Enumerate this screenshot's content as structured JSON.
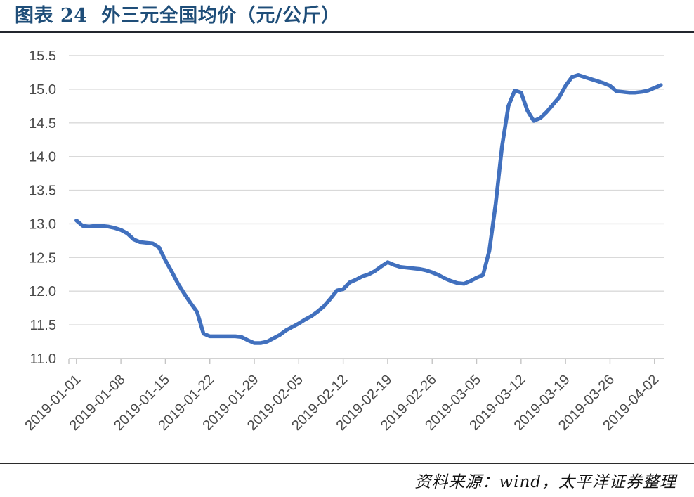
{
  "header": {
    "title": "图表 24  外三元全国均价（元/公斤）"
  },
  "footer": {
    "source": "资料来源：wind，太平洋证券整理"
  },
  "style": {
    "title_color": "#1F4E79",
    "title_rule_color": "#23262e",
    "line_color": "#4170BE",
    "grid_color": "#D9D9D9",
    "axis_color": "#C4C4C4",
    "axis_text_color": "#4a4a4a",
    "footer_rule_color": "#2b2b2b",
    "source_text_color": "#141414"
  },
  "chart_data": {
    "type": "line",
    "title": "外三元全国均价（元/公斤）",
    "xlabel": "",
    "ylabel": "",
    "ylim": [
      11.0,
      15.5
    ],
    "ytick_step": 0.5,
    "grid": "horizontal-only",
    "legend": "none",
    "x_tick_every": 7,
    "x_tick_labels": [
      "2019-01-01",
      "2019-01-08",
      "2019-01-15",
      "2019-01-22",
      "2019-01-29",
      "2019-02-05",
      "2019-02-12",
      "2019-02-19",
      "2019-02-26",
      "2019-03-05",
      "2019-03-12",
      "2019-03-19",
      "2019-03-26",
      "2019-04-02"
    ],
    "x": [
      "2019-01-01",
      "2019-01-02",
      "2019-01-03",
      "2019-01-04",
      "2019-01-05",
      "2019-01-06",
      "2019-01-07",
      "2019-01-08",
      "2019-01-09",
      "2019-01-10",
      "2019-01-11",
      "2019-01-12",
      "2019-01-13",
      "2019-01-14",
      "2019-01-15",
      "2019-01-16",
      "2019-01-17",
      "2019-01-18",
      "2019-01-19",
      "2019-01-20",
      "2019-01-21",
      "2019-01-22",
      "2019-01-23",
      "2019-01-24",
      "2019-01-25",
      "2019-01-26",
      "2019-01-27",
      "2019-01-28",
      "2019-01-29",
      "2019-01-30",
      "2019-01-31",
      "2019-02-01",
      "2019-02-02",
      "2019-02-03",
      "2019-02-04",
      "2019-02-05",
      "2019-02-06",
      "2019-02-07",
      "2019-02-08",
      "2019-02-09",
      "2019-02-10",
      "2019-02-11",
      "2019-02-12",
      "2019-02-13",
      "2019-02-14",
      "2019-02-15",
      "2019-02-16",
      "2019-02-17",
      "2019-02-18",
      "2019-02-19",
      "2019-02-20",
      "2019-02-21",
      "2019-02-22",
      "2019-02-23",
      "2019-02-24",
      "2019-02-25",
      "2019-02-26",
      "2019-02-27",
      "2019-02-28",
      "2019-03-01",
      "2019-03-02",
      "2019-03-03",
      "2019-03-04",
      "2019-03-05",
      "2019-03-06",
      "2019-03-07",
      "2019-03-08",
      "2019-03-09",
      "2019-03-10",
      "2019-03-11",
      "2019-03-12",
      "2019-03-13",
      "2019-03-14",
      "2019-03-15",
      "2019-03-16",
      "2019-03-17",
      "2019-03-18",
      "2019-03-19",
      "2019-03-20",
      "2019-03-21",
      "2019-03-22",
      "2019-03-23",
      "2019-03-24",
      "2019-03-25",
      "2019-03-26",
      "2019-03-27",
      "2019-03-28",
      "2019-03-29",
      "2019-03-30",
      "2019-03-31",
      "2019-04-01",
      "2019-04-02",
      "2019-04-03"
    ],
    "series": [
      {
        "name": "外三元全国均价(元/公斤)",
        "color": "#4170BE",
        "values": [
          13.05,
          12.97,
          12.96,
          12.97,
          12.97,
          12.96,
          12.94,
          12.91,
          12.86,
          12.77,
          12.73,
          12.72,
          12.71,
          12.65,
          12.46,
          12.29,
          12.11,
          11.96,
          11.82,
          11.69,
          11.37,
          11.33,
          11.33,
          11.33,
          11.33,
          11.33,
          11.32,
          11.27,
          11.23,
          11.23,
          11.25,
          11.3,
          11.35,
          11.42,
          11.47,
          11.52,
          11.58,
          11.63,
          11.7,
          11.78,
          11.89,
          12.01,
          12.03,
          12.13,
          12.17,
          12.22,
          12.25,
          12.3,
          12.37,
          12.43,
          12.39,
          12.36,
          12.35,
          12.34,
          12.33,
          12.31,
          12.28,
          12.24,
          12.19,
          12.15,
          12.12,
          12.11,
          12.15,
          12.2,
          12.24,
          12.6,
          13.3,
          14.15,
          14.75,
          14.98,
          14.95,
          14.68,
          14.53,
          14.57,
          14.66,
          14.77,
          14.88,
          15.05,
          15.18,
          15.21,
          15.18,
          15.15,
          15.12,
          15.09,
          15.05,
          14.97,
          14.96,
          14.95,
          14.95,
          14.96,
          14.98,
          15.02,
          15.06
        ]
      }
    ]
  }
}
